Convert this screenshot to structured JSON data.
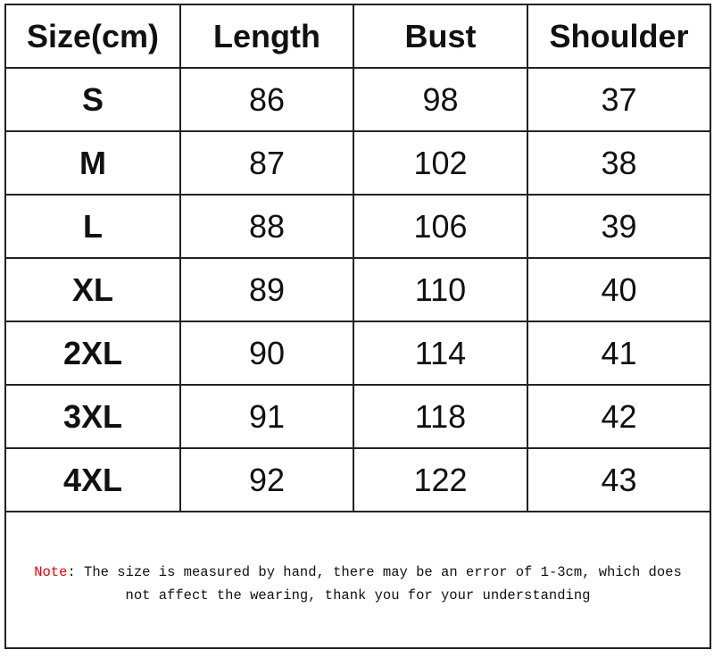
{
  "table": {
    "headers": [
      "Size(cm)",
      "Length",
      "Bust",
      "Shoulder"
    ],
    "rows": [
      [
        "S",
        "86",
        "98",
        "37"
      ],
      [
        "M",
        "87",
        "102",
        "38"
      ],
      [
        "L",
        "88",
        "106",
        "39"
      ],
      [
        "XL",
        "89",
        "110",
        "40"
      ],
      [
        "2XL",
        "90",
        "114",
        "41"
      ],
      [
        "3XL",
        "91",
        "118",
        "42"
      ],
      [
        "4XL",
        "92",
        "122",
        "43"
      ]
    ]
  },
  "note": {
    "label": "Note",
    "line1": ": The size is measured by hand, there may be an error of 1-3cm, which does",
    "line2": "not affect the wearing, thank you for your understanding",
    "label_color": "#e00000"
  }
}
